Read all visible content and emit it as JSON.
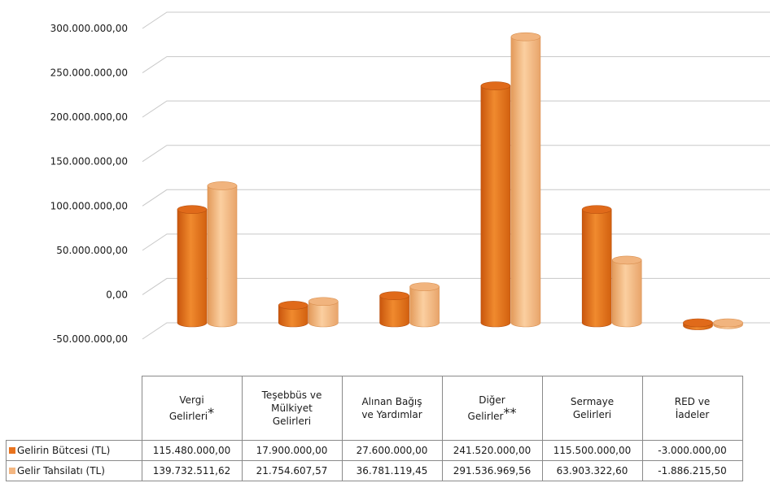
{
  "chart_data": {
    "type": "bar",
    "categories": [
      {
        "lines": [
          "Vergi",
          "Gelirleri"
        ],
        "mark": "*"
      },
      {
        "lines": [
          "Teşebbüs ve",
          "Mülkiyet",
          "Gelirleri"
        ],
        "mark": ""
      },
      {
        "lines": [
          "Alınan Bağış",
          "ve Yardımlar"
        ],
        "mark": ""
      },
      {
        "lines": [
          "Diğer",
          "Gelirler"
        ],
        "mark": "**"
      },
      {
        "lines": [
          "Sermaye",
          "Gelirleri"
        ],
        "mark": ""
      },
      {
        "lines": [
          "RED ve",
          "İadeler"
        ],
        "mark": ""
      }
    ],
    "series": [
      {
        "name": "Gelirin Bütcesi (TL)",
        "color": "#e8731e",
        "values": [
          115480000,
          17900000,
          27600000,
          241520000,
          115500000,
          -3000000
        ],
        "labels": [
          "115.480.000,00",
          "17.900.000,00",
          "27.600.000,00",
          "241.520.000,00",
          "115.500.000,00",
          "-3.000.000,00"
        ]
      },
      {
        "name": "Gelir Tahsilatı (TL)",
        "color": "#f3b681",
        "values": [
          139732511.62,
          21754607.57,
          36781119.45,
          291536969.56,
          63903322.6,
          -1886215.5
        ],
        "labels": [
          "139.732.511,62",
          "21.754.607,57",
          "36.781.119,45",
          "291.536.969,56",
          "63.903.322,60",
          "-1.886.215,50"
        ]
      }
    ],
    "y_ticks": [
      "300.000.000,00",
      "250.000.000,00",
      "200.000.000,00",
      "150.000.000,00",
      "100.000.000,00",
      "50.000.000,00",
      "0,00",
      "-50.000.000,00"
    ],
    "y_tick_values": [
      300000000,
      250000000,
      200000000,
      150000000,
      100000000,
      50000000,
      0,
      -50000000
    ],
    "ylim": [
      -50000000,
      300000000
    ],
    "grid": true,
    "legend": "data-table"
  }
}
